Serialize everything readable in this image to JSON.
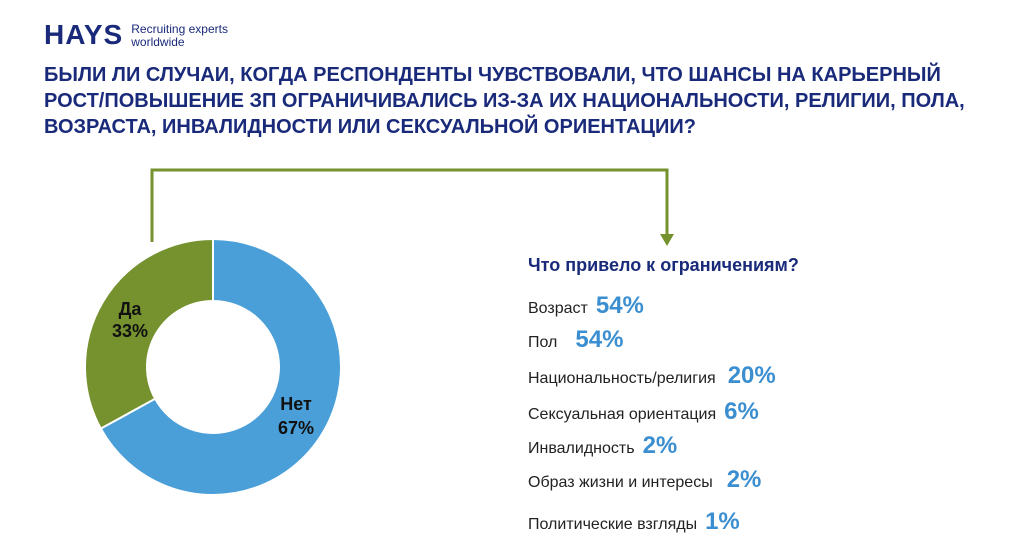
{
  "header": {
    "logo_word": "HAYS",
    "logo_tagline_1": "Recruiting experts",
    "logo_tagline_2": "worldwide",
    "title": "БЫЛИ ЛИ СЛУЧАИ, КОГДА РЕСПОНДЕНТЫ ЧУВСТВОВАЛИ, ЧТО ШАНСЫ НА КАРЬЕРНЫЙ РОСТ/ПОВЫШЕНИЕ ЗП ОГРАНИЧИВАЛИСЬ ИЗ-ЗА ИХ НАЦИОНАЛЬНОСТИ, РЕЛИГИИ, ПОЛА, ВОЗРАСТА, ИНВАЛИДНОСТИ ИЛИ СЕКСУАЛЬНОЙ ОРИЕНТАЦИИ?"
  },
  "chart_data": {
    "type": "pie",
    "slices": [
      {
        "name": "Да",
        "value": 33,
        "value_label": "33%",
        "color": "#76922f"
      },
      {
        "name": "Нет",
        "value": 67,
        "value_label": "67%",
        "color": "#4a9fd8"
      }
    ]
  },
  "reasons": {
    "title": "Что привело к ограничениям?",
    "items": [
      {
        "label": "Возраст",
        "value": "54%"
      },
      {
        "label": "Пол",
        "value": "54%"
      },
      {
        "label": "Национальность/религия",
        "value": "20%"
      },
      {
        "label": "Сексуальная ориентация",
        "value": "6%"
      },
      {
        "label": "Инвалидность",
        "value": "2%"
      },
      {
        "label": "Образ жизни и интересы",
        "value": "2%"
      },
      {
        "label": "Политические взгляды",
        "value": "1%"
      }
    ]
  },
  "colors": {
    "brand_navy": "#1a2a7a",
    "accent_blue": "#3b8fd0",
    "connector_green": "#76922f"
  }
}
